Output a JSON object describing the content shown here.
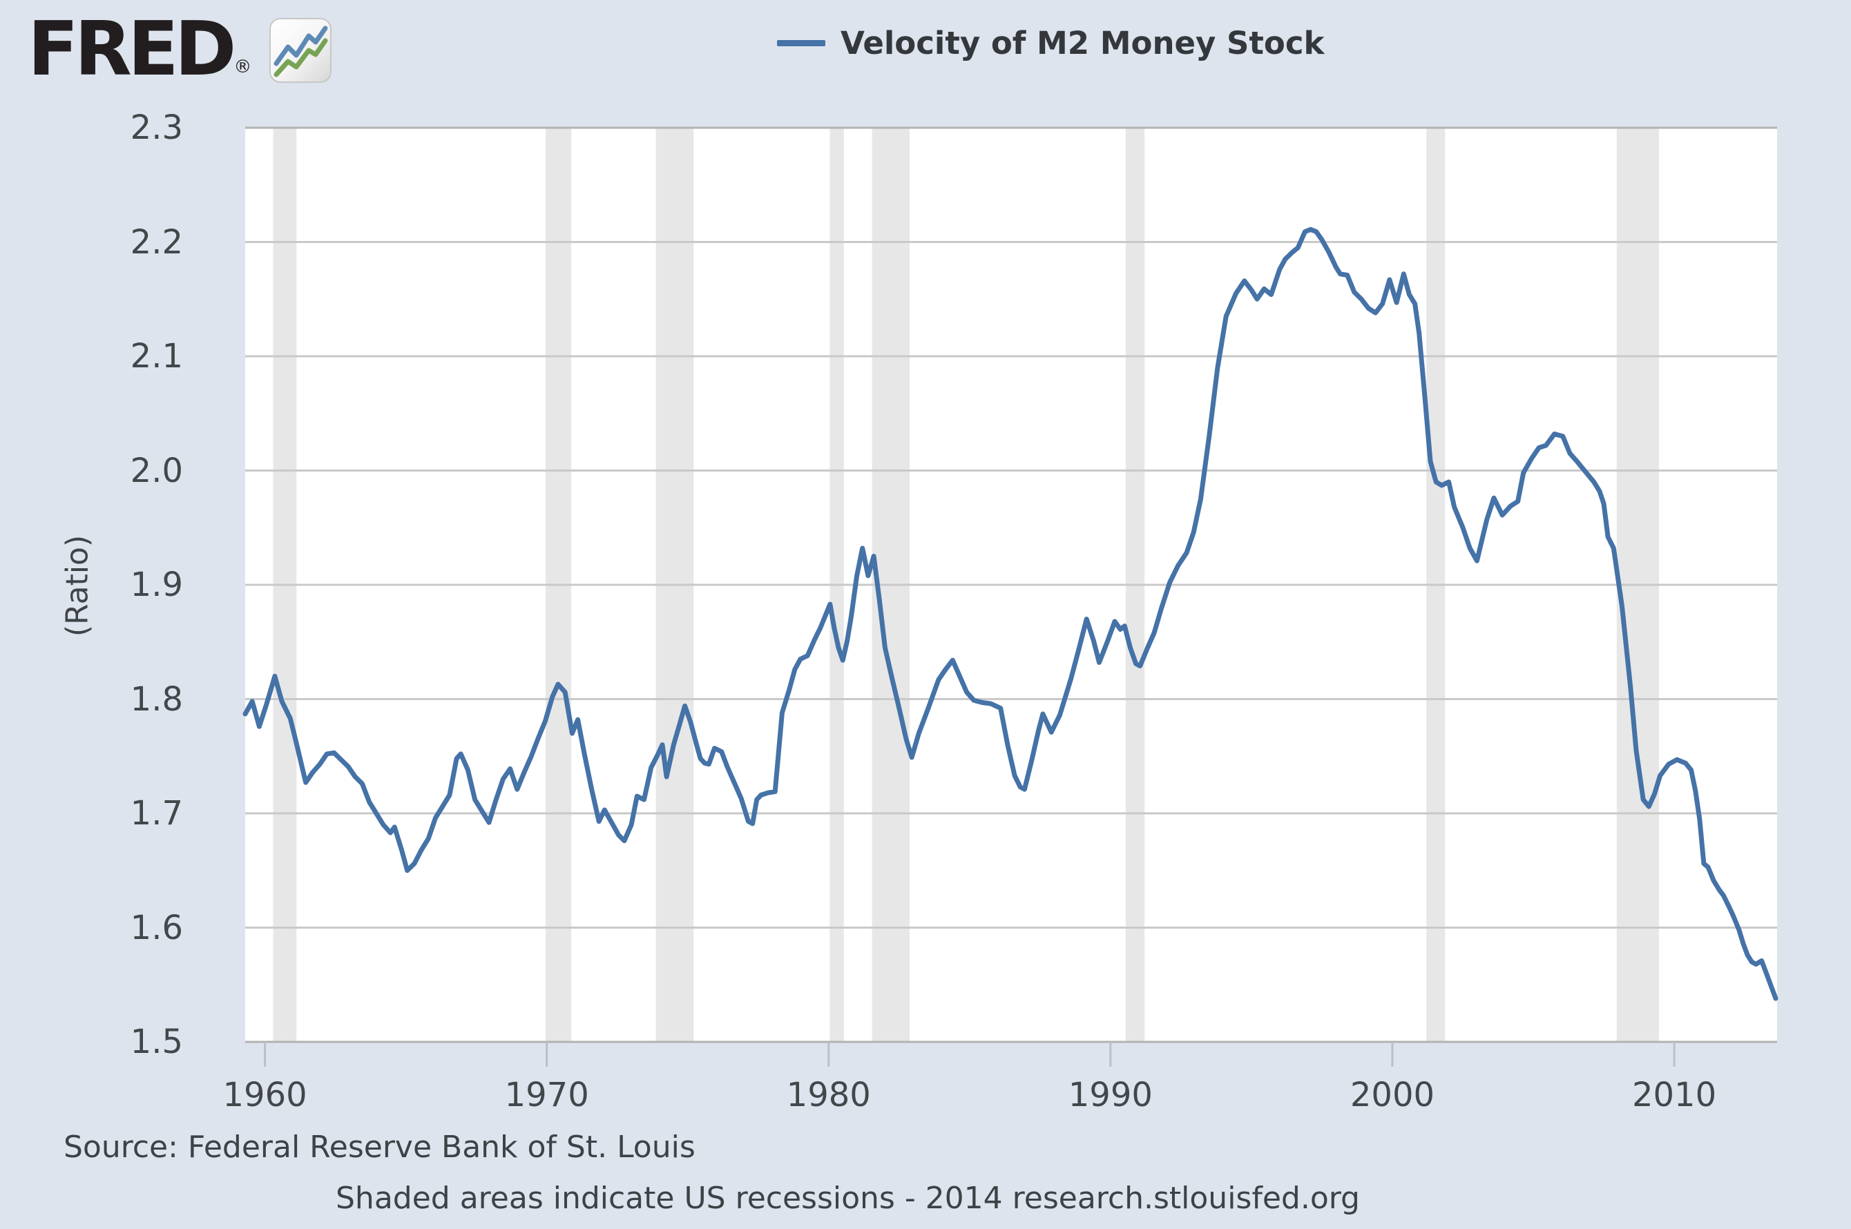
{
  "logo": {
    "text": "FRED",
    "registered": "®"
  },
  "legend": {
    "label": "Velocity of M2 Money Stock"
  },
  "footer": {
    "source": "Source: Federal Reserve Bank of St. Louis",
    "note": "Shaded areas indicate US recessions - 2014 research.stlouisfed.org"
  },
  "chart_data": {
    "type": "line",
    "title": "Velocity of M2 Money Stock",
    "xlabel": "",
    "ylabel": "(Ratio)",
    "xlim": [
      1959.3,
      2013.65
    ],
    "ylim": [
      1.5,
      2.3
    ],
    "grid": true,
    "legend_position": "top-center",
    "x_ticks": [
      "1960",
      "1970",
      "1980",
      "1990",
      "2000",
      "2010"
    ],
    "y_ticks": [
      "2.3",
      "2.2",
      "2.1",
      "2.0",
      "1.9",
      "1.8",
      "1.7",
      "1.6",
      "1.5"
    ],
    "colors": {
      "line": "#4572a7",
      "plot_bg": "#ffffff",
      "page_bg": "#dde4ed",
      "grid": "#c9c9c9",
      "border": "#b2b2b2",
      "tick": "#b7c1cd",
      "recession": "#e7e7e7"
    },
    "recessions": [
      [
        1960.29,
        1961.12
      ],
      [
        1969.96,
        1970.87
      ],
      [
        1973.87,
        1975.21
      ],
      [
        1980.04,
        1980.54
      ],
      [
        1981.54,
        1982.87
      ],
      [
        1990.54,
        1991.21
      ],
      [
        2001.21,
        2001.87
      ],
      [
        2007.96,
        2009.46
      ]
    ],
    "series": [
      {
        "name": "Velocity of M2 Money Stock",
        "color": "#4572a7",
        "points": [
          [
            1959.3,
            1.787
          ],
          [
            1959.55,
            1.798
          ],
          [
            1959.8,
            1.776
          ],
          [
            1960.05,
            1.795
          ],
          [
            1960.35,
            1.82
          ],
          [
            1960.6,
            1.798
          ],
          [
            1960.9,
            1.783
          ],
          [
            1961.15,
            1.758
          ],
          [
            1961.45,
            1.727
          ],
          [
            1961.7,
            1.736
          ],
          [
            1961.95,
            1.743
          ],
          [
            1962.2,
            1.752
          ],
          [
            1962.45,
            1.753
          ],
          [
            1962.7,
            1.747
          ],
          [
            1962.95,
            1.741
          ],
          [
            1963.2,
            1.732
          ],
          [
            1963.45,
            1.726
          ],
          [
            1963.7,
            1.71
          ],
          [
            1963.95,
            1.7
          ],
          [
            1964.2,
            1.69
          ],
          [
            1964.45,
            1.683
          ],
          [
            1964.6,
            1.688
          ],
          [
            1964.85,
            1.668
          ],
          [
            1965.05,
            1.65
          ],
          [
            1965.3,
            1.656
          ],
          [
            1965.55,
            1.668
          ],
          [
            1965.8,
            1.678
          ],
          [
            1966.05,
            1.696
          ],
          [
            1966.3,
            1.706
          ],
          [
            1966.55,
            1.716
          ],
          [
            1966.8,
            1.748
          ],
          [
            1966.95,
            1.752
          ],
          [
            1967.2,
            1.738
          ],
          [
            1967.45,
            1.712
          ],
          [
            1967.7,
            1.702
          ],
          [
            1967.95,
            1.692
          ],
          [
            1968.2,
            1.712
          ],
          [
            1968.45,
            1.73
          ],
          [
            1968.7,
            1.739
          ],
          [
            1968.95,
            1.721
          ],
          [
            1969.2,
            1.736
          ],
          [
            1969.45,
            1.75
          ],
          [
            1969.7,
            1.766
          ],
          [
            1969.95,
            1.781
          ],
          [
            1970.2,
            1.802
          ],
          [
            1970.4,
            1.813
          ],
          [
            1970.65,
            1.806
          ],
          [
            1970.9,
            1.77
          ],
          [
            1971.1,
            1.782
          ],
          [
            1971.35,
            1.75
          ],
          [
            1971.6,
            1.72
          ],
          [
            1971.85,
            1.693
          ],
          [
            1972.05,
            1.703
          ],
          [
            1972.3,
            1.692
          ],
          [
            1972.55,
            1.681
          ],
          [
            1972.75,
            1.676
          ],
          [
            1973.0,
            1.69
          ],
          [
            1973.2,
            1.715
          ],
          [
            1973.45,
            1.712
          ],
          [
            1973.7,
            1.74
          ],
          [
            1973.95,
            1.752
          ],
          [
            1974.1,
            1.76
          ],
          [
            1974.25,
            1.732
          ],
          [
            1974.5,
            1.76
          ],
          [
            1974.7,
            1.777
          ],
          [
            1974.9,
            1.794
          ],
          [
            1975.1,
            1.78
          ],
          [
            1975.25,
            1.766
          ],
          [
            1975.45,
            1.748
          ],
          [
            1975.6,
            1.744
          ],
          [
            1975.75,
            1.743
          ],
          [
            1975.95,
            1.757
          ],
          [
            1976.2,
            1.754
          ],
          [
            1976.4,
            1.741
          ],
          [
            1976.65,
            1.727
          ],
          [
            1976.9,
            1.713
          ],
          [
            1977.15,
            1.693
          ],
          [
            1977.3,
            1.691
          ],
          [
            1977.45,
            1.712
          ],
          [
            1977.6,
            1.716
          ],
          [
            1977.85,
            1.718
          ],
          [
            1978.1,
            1.719
          ],
          [
            1978.35,
            1.788
          ],
          [
            1978.6,
            1.808
          ],
          [
            1978.8,
            1.826
          ],
          [
            1979.0,
            1.835
          ],
          [
            1979.25,
            1.838
          ],
          [
            1979.5,
            1.852
          ],
          [
            1979.7,
            1.862
          ],
          [
            1979.9,
            1.874
          ],
          [
            1980.05,
            1.883
          ],
          [
            1980.2,
            1.862
          ],
          [
            1980.35,
            1.845
          ],
          [
            1980.5,
            1.834
          ],
          [
            1980.65,
            1.85
          ],
          [
            1980.8,
            1.872
          ],
          [
            1981.0,
            1.908
          ],
          [
            1981.2,
            1.932
          ],
          [
            1981.4,
            1.908
          ],
          [
            1981.6,
            1.925
          ],
          [
            1981.8,
            1.887
          ],
          [
            1982.0,
            1.845
          ],
          [
            1982.25,
            1.818
          ],
          [
            1982.5,
            1.792
          ],
          [
            1982.75,
            1.765
          ],
          [
            1982.95,
            1.749
          ],
          [
            1983.2,
            1.77
          ],
          [
            1983.55,
            1.793
          ],
          [
            1983.9,
            1.817
          ],
          [
            1984.15,
            1.826
          ],
          [
            1984.4,
            1.834
          ],
          [
            1984.65,
            1.82
          ],
          [
            1984.9,
            1.806
          ],
          [
            1985.15,
            1.799
          ],
          [
            1985.45,
            1.797
          ],
          [
            1985.75,
            1.796
          ],
          [
            1986.1,
            1.792
          ],
          [
            1986.35,
            1.76
          ],
          [
            1986.6,
            1.733
          ],
          [
            1986.8,
            1.723
          ],
          [
            1986.95,
            1.721
          ],
          [
            1987.2,
            1.746
          ],
          [
            1987.45,
            1.773
          ],
          [
            1987.6,
            1.787
          ],
          [
            1987.9,
            1.771
          ],
          [
            1988.2,
            1.786
          ],
          [
            1988.6,
            1.818
          ],
          [
            1988.9,
            1.846
          ],
          [
            1989.15,
            1.87
          ],
          [
            1989.4,
            1.851
          ],
          [
            1989.6,
            1.832
          ],
          [
            1989.9,
            1.851
          ],
          [
            1990.15,
            1.868
          ],
          [
            1990.35,
            1.861
          ],
          [
            1990.5,
            1.864
          ],
          [
            1990.7,
            1.845
          ],
          [
            1990.9,
            1.831
          ],
          [
            1991.05,
            1.829
          ],
          [
            1991.3,
            1.844
          ],
          [
            1991.55,
            1.858
          ],
          [
            1991.8,
            1.879
          ],
          [
            1992.1,
            1.902
          ],
          [
            1992.4,
            1.917
          ],
          [
            1992.7,
            1.928
          ],
          [
            1992.95,
            1.946
          ],
          [
            1993.2,
            1.975
          ],
          [
            1993.5,
            2.03
          ],
          [
            1993.8,
            2.09
          ],
          [
            1994.1,
            2.135
          ],
          [
            1994.45,
            2.155
          ],
          [
            1994.75,
            2.166
          ],
          [
            1995.0,
            2.158
          ],
          [
            1995.2,
            2.15
          ],
          [
            1995.45,
            2.159
          ],
          [
            1995.7,
            2.154
          ],
          [
            1996.0,
            2.176
          ],
          [
            1996.2,
            2.185
          ],
          [
            1996.45,
            2.191
          ],
          [
            1996.65,
            2.195
          ],
          [
            1996.9,
            2.209
          ],
          [
            1997.1,
            2.211
          ],
          [
            1997.3,
            2.209
          ],
          [
            1997.5,
            2.202
          ],
          [
            1997.75,
            2.191
          ],
          [
            1998.0,
            2.178
          ],
          [
            1998.15,
            2.172
          ],
          [
            1998.4,
            2.171
          ],
          [
            1998.65,
            2.156
          ],
          [
            1998.9,
            2.15
          ],
          [
            1999.15,
            2.142
          ],
          [
            1999.4,
            2.138
          ],
          [
            1999.65,
            2.146
          ],
          [
            1999.9,
            2.167
          ],
          [
            2000.15,
            2.147
          ],
          [
            2000.4,
            2.172
          ],
          [
            2000.6,
            2.154
          ],
          [
            2000.8,
            2.146
          ],
          [
            2000.95,
            2.12
          ],
          [
            2001.15,
            2.065
          ],
          [
            2001.35,
            2.008
          ],
          [
            2001.55,
            1.99
          ],
          [
            2001.75,
            1.987
          ],
          [
            2002.0,
            1.99
          ],
          [
            2002.2,
            1.968
          ],
          [
            2002.5,
            1.95
          ],
          [
            2002.75,
            1.932
          ],
          [
            2003.0,
            1.921
          ],
          [
            2003.35,
            1.957
          ],
          [
            2003.6,
            1.976
          ],
          [
            2003.9,
            1.961
          ],
          [
            2004.2,
            1.969
          ],
          [
            2004.45,
            1.973
          ],
          [
            2004.65,
            1.998
          ],
          [
            2004.95,
            2.011
          ],
          [
            2005.2,
            2.02
          ],
          [
            2005.45,
            2.022
          ],
          [
            2005.75,
            2.032
          ],
          [
            2006.05,
            2.03
          ],
          [
            2006.3,
            2.015
          ],
          [
            2006.55,
            2.008
          ],
          [
            2006.85,
            1.999
          ],
          [
            2007.15,
            1.99
          ],
          [
            2007.35,
            1.982
          ],
          [
            2007.5,
            1.971
          ],
          [
            2007.65,
            1.942
          ],
          [
            2007.85,
            1.932
          ],
          [
            2008.15,
            1.881
          ],
          [
            2008.45,
            1.81
          ],
          [
            2008.65,
            1.755
          ],
          [
            2008.9,
            1.712
          ],
          [
            2009.1,
            1.706
          ],
          [
            2009.3,
            1.717
          ],
          [
            2009.5,
            1.733
          ],
          [
            2009.8,
            1.743
          ],
          [
            2010.1,
            1.747
          ],
          [
            2010.4,
            1.744
          ],
          [
            2010.6,
            1.738
          ],
          [
            2010.75,
            1.72
          ],
          [
            2010.9,
            1.695
          ],
          [
            2011.05,
            1.656
          ],
          [
            2011.2,
            1.653
          ],
          [
            2011.4,
            1.641
          ],
          [
            2011.6,
            1.633
          ],
          [
            2011.75,
            1.628
          ],
          [
            2011.95,
            1.618
          ],
          [
            2012.1,
            1.61
          ],
          [
            2012.3,
            1.598
          ],
          [
            2012.45,
            1.586
          ],
          [
            2012.6,
            1.576
          ],
          [
            2012.75,
            1.57
          ],
          [
            2012.9,
            1.568
          ],
          [
            2013.1,
            1.571
          ],
          [
            2013.3,
            1.558
          ],
          [
            2013.45,
            1.548
          ],
          [
            2013.6,
            1.538
          ]
        ]
      }
    ]
  }
}
